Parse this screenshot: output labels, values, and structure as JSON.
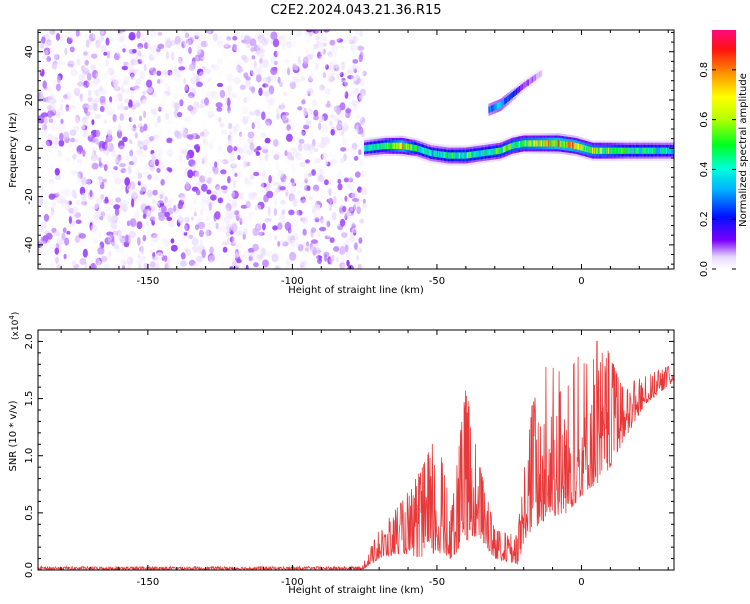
{
  "title": "C2E2.2024.043.21.36.R15",
  "colors": {
    "snr_line": "#e8393a",
    "axis": "#000000"
  },
  "chart_data": [
    {
      "type": "heatmap",
      "xlabel": "Height of straight line (km)",
      "ylabel": "Frequency (Hz)",
      "xlim": [
        -188,
        32
      ],
      "ylim": [
        -50,
        49
      ],
      "xticks": [
        -150,
        -100,
        -50,
        0
      ],
      "yticks": [
        -40,
        -20,
        0,
        20,
        40
      ],
      "noise_region_x": [
        -188,
        -75
      ],
      "noise_amplitude_range": [
        0.0,
        0.1
      ],
      "ridge": [
        {
          "x": -75,
          "y": 0,
          "amp": 0.35
        },
        {
          "x": -68,
          "y": 1,
          "amp": 0.5
        },
        {
          "x": -62,
          "y": 1,
          "amp": 0.7
        },
        {
          "x": -57,
          "y": 0,
          "amp": 0.45
        },
        {
          "x": -52,
          "y": -2,
          "amp": 0.4
        },
        {
          "x": -46,
          "y": -3,
          "amp": 0.45
        },
        {
          "x": -40,
          "y": -3,
          "amp": 0.5
        },
        {
          "x": -34,
          "y": -2,
          "amp": 0.45
        },
        {
          "x": -28,
          "y": -1,
          "amp": 0.5
        },
        {
          "x": -24,
          "y": 1,
          "amp": 0.55
        },
        {
          "x": -20,
          "y": 2,
          "amp": 0.6
        },
        {
          "x": -14,
          "y": 2,
          "amp": 0.65
        },
        {
          "x": -8,
          "y": 2,
          "amp": 0.75
        },
        {
          "x": -2,
          "y": 1,
          "amp": 0.7
        },
        {
          "x": 4,
          "y": -1,
          "amp": 0.6
        },
        {
          "x": 10,
          "y": -1,
          "amp": 0.55
        },
        {
          "x": 16,
          "y": -1,
          "amp": 0.45
        },
        {
          "x": 22,
          "y": -1,
          "amp": 0.45
        },
        {
          "x": 32,
          "y": -1,
          "amp": 0.4
        }
      ],
      "branch": [
        {
          "x": -32,
          "y": 16,
          "amp": 0.3
        },
        {
          "x": -28,
          "y": 18,
          "amp": 0.35
        },
        {
          "x": -26,
          "y": 20,
          "amp": 0.3
        },
        {
          "x": -20,
          "y": 26,
          "amp": 0.12
        },
        {
          "x": -14,
          "y": 31,
          "amp": 0.05
        }
      ],
      "colorbar": {
        "label": "Normalized spectral amplitude",
        "ticks": [
          0.0,
          0.2,
          0.4,
          0.6,
          0.8
        ],
        "range": [
          0.0,
          0.96
        ]
      }
    },
    {
      "type": "line",
      "xlabel": "Height of straight line (km)",
      "ylabel": "SNR (10 * v/v)",
      "scale_label": "(x10",
      "scale_exp": "4",
      "scale_close": ")",
      "xlim": [
        -188,
        32
      ],
      "ylim": [
        0.0,
        2.1
      ],
      "xticks": [
        -150,
        -100,
        -50,
        0
      ],
      "yticks": [
        0.0,
        0.5,
        1.0,
        1.5,
        2.0
      ],
      "envelope": [
        {
          "x": -188,
          "base": 0.0,
          "peak": 0.03
        },
        {
          "x": -76,
          "base": 0.0,
          "peak": 0.03
        },
        {
          "x": -70,
          "base": 0.1,
          "peak": 0.35
        },
        {
          "x": -62,
          "base": 0.15,
          "peak": 0.6
        },
        {
          "x": -55,
          "base": 0.1,
          "peak": 0.9
        },
        {
          "x": -50,
          "base": 0.15,
          "peak": 1.2
        },
        {
          "x": -45,
          "base": 0.1,
          "peak": 0.5
        },
        {
          "x": -40,
          "base": 0.25,
          "peak": 1.6
        },
        {
          "x": -36,
          "base": 0.3,
          "peak": 1.0
        },
        {
          "x": -30,
          "base": 0.1,
          "peak": 0.35
        },
        {
          "x": -22,
          "base": 0.05,
          "peak": 0.3
        },
        {
          "x": -19,
          "base": 0.3,
          "peak": 1.3
        },
        {
          "x": -12,
          "base": 0.45,
          "peak": 1.8
        },
        {
          "x": -5,
          "base": 0.5,
          "peak": 1.7
        },
        {
          "x": 2,
          "base": 0.7,
          "peak": 2.0
        },
        {
          "x": 8,
          "base": 0.8,
          "peak": 2.0
        },
        {
          "x": 14,
          "base": 1.1,
          "peak": 1.6
        },
        {
          "x": 22,
          "base": 1.45,
          "peak": 1.7
        },
        {
          "x": 32,
          "base": 1.65,
          "peak": 1.8
        }
      ]
    }
  ]
}
